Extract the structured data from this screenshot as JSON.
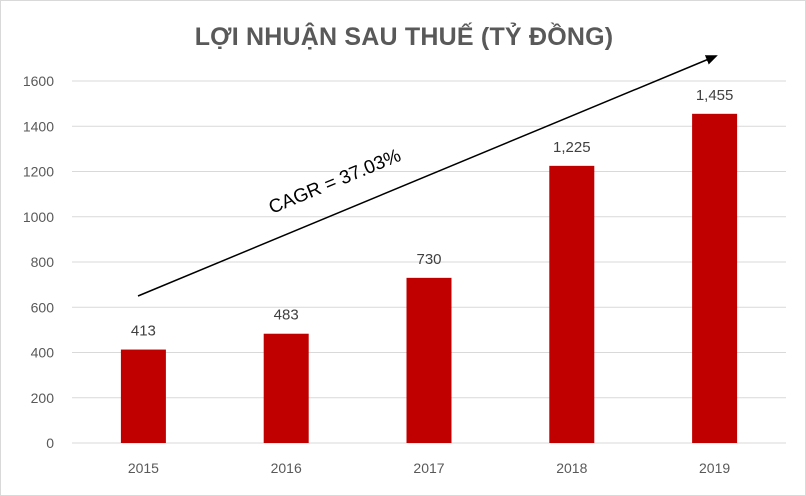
{
  "chart_data": {
    "type": "bar",
    "title": "LỢI NHUẬN SAU THUẾ (TỶ ĐỒNG)",
    "categories": [
      "2015",
      "2016",
      "2017",
      "2018",
      "2019"
    ],
    "values": [
      413,
      483,
      730,
      1225,
      1455
    ],
    "data_labels": [
      "413",
      "483",
      "730",
      "1,225",
      "1,455"
    ],
    "ylim": [
      0,
      1600
    ],
    "yticks": [
      0,
      200,
      400,
      600,
      800,
      1000,
      1200,
      1400,
      1600
    ],
    "grid": true,
    "bar_color": "#c00000",
    "annotation": "CAGR = 37.03%",
    "trend_arrow": true
  }
}
